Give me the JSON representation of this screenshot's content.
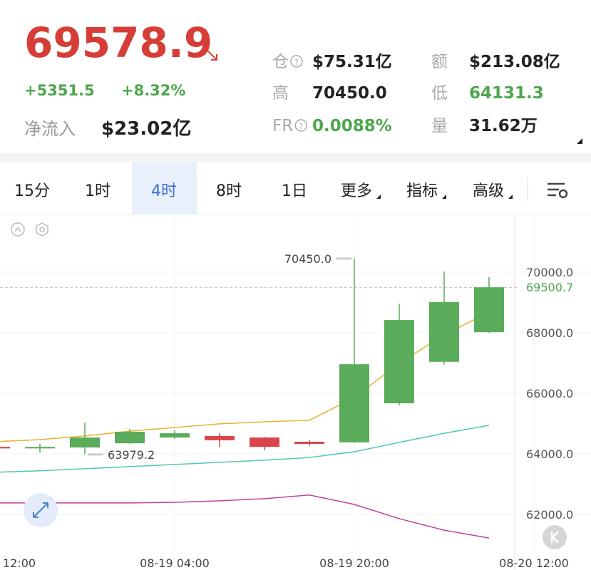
{
  "header": {
    "price": "69578.9",
    "change": "+5351.5",
    "change_pct": "+8.32%",
    "net_inflow_label": "净流入",
    "net_inflow": "$23.02亿",
    "stats": [
      [
        {
          "label": "仓",
          "value": "$75.31亿"
        },
        {
          "label": "额",
          "value": "$213.08亿"
        }
      ],
      [
        {
          "label": "高",
          "value": "70450.0"
        },
        {
          "label": "低",
          "value": "64131.3"
        }
      ],
      [
        {
          "label": "FR",
          "value": "0.0088%"
        },
        {
          "label": "量",
          "value": "31.62万"
        }
      ]
    ]
  },
  "tabs": [
    "15分",
    "1时",
    "4时",
    "8时",
    "1日",
    "更多",
    "指标",
    "高级"
  ],
  "chart_data": {
    "type": "candlestick",
    "categories": [
      "12:00",
      null,
      null,
      null,
      "08-19 04:00",
      null,
      null,
      null,
      "08-19 20:00",
      null,
      null,
      null,
      "08-20 12:00"
    ],
    "open": [
      64230,
      64180,
      64210,
      64350,
      64540,
      64590,
      64540,
      64400,
      64380,
      65670,
      67040,
      68020,
      null
    ],
    "high": [
      64250,
      64330,
      65035,
      64820,
      64780,
      64680,
      64560,
      64450,
      70450,
      68960,
      70020,
      69840,
      null
    ],
    "low": [
      64150,
      64040,
      63979.2,
      64330,
      64490,
      64230,
      64120,
      64260,
      64360,
      65600,
      66950,
      68000,
      null
    ],
    "close": [
      64180,
      64230,
      64540,
      64730,
      64680,
      64450,
      64230,
      64330,
      66960,
      68420,
      69010,
      69500.7,
      null
    ],
    "up_color": "#5aab5a",
    "down_color": "#d9454a",
    "ma_lines": [
      {
        "color": "#e8b230",
        "values": [
          64400,
          64470,
          64590,
          64750,
          64870,
          64990,
          65060,
          65110,
          65860,
          66990,
          67930,
          68680,
          null
        ]
      },
      {
        "color": "#4fc9b0",
        "values": [
          63390,
          63440,
          63510,
          63580,
          63650,
          63720,
          63790,
          63880,
          64070,
          64380,
          64680,
          64940,
          null
        ]
      },
      {
        "color": "#c2409c",
        "values": [
          62380,
          62380,
          62380,
          62380,
          62400,
          62450,
          62520,
          62640,
          62330,
          61860,
          61480,
          61220,
          null
        ]
      }
    ],
    "ylim": [
      60753,
      71929
    ],
    "yticks": [
      {
        "value": 62000,
        "label": "62000.0"
      },
      {
        "value": 64000,
        "label": "64000.0"
      },
      {
        "value": 66000,
        "label": "66000.0"
      },
      {
        "value": 68000,
        "label": "68000.0"
      },
      {
        "value": 70000,
        "label": "70000.0"
      }
    ],
    "last_price": 69500.7,
    "annotations": [
      {
        "value": 70450,
        "label": "70450.0"
      },
      {
        "value": 63979.2,
        "label": "63979.2"
      }
    ],
    "grid": true
  }
}
